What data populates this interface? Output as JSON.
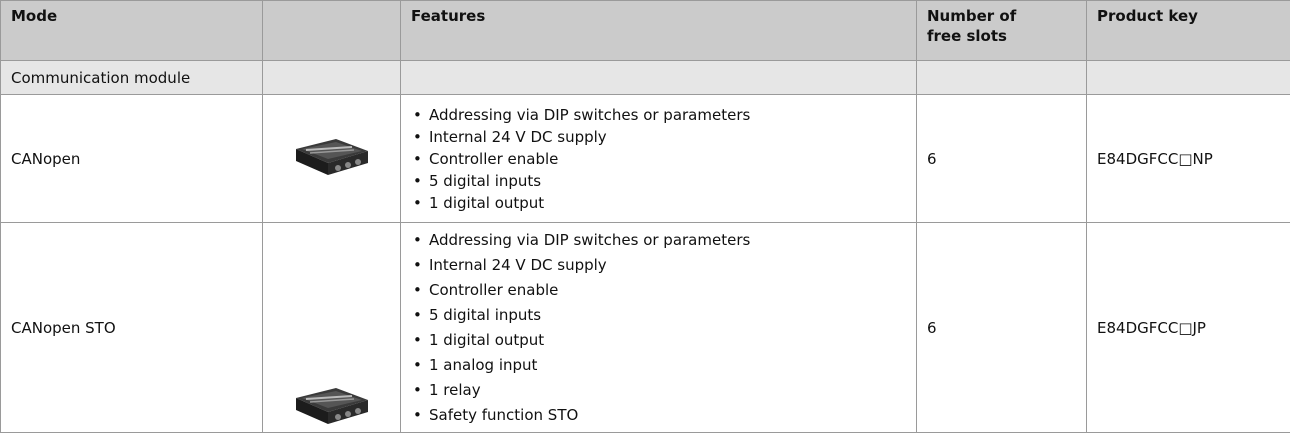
{
  "header": {
    "mode": "Mode",
    "features": "Features",
    "slots": "Number of free slots",
    "product_key": "Product key"
  },
  "section": "Communication module",
  "rows": [
    {
      "mode": "CANopen",
      "features": [
        "Addressing via DIP switches or parameters",
        "Internal 24 V DC supply",
        "Controller enable",
        "5 digital inputs",
        "1 digital output"
      ],
      "slots": 6,
      "product_key": "E84DGFCC□NP"
    },
    {
      "mode": "CANopen STO",
      "features": [
        "Addressing via DIP switches or parameters",
        "Internal 24 V DC supply",
        "Controller enable",
        "5 digital inputs",
        "1 digital output",
        "1 analog input",
        "1 relay",
        "Safety function STO"
      ],
      "slots": 6,
      "product_key": "E84DGFCC□JP"
    }
  ]
}
